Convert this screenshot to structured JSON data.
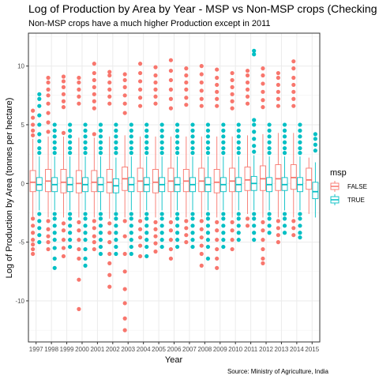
{
  "chart_data": {
    "type": "boxplot",
    "title": "Log of Production by Area by Year - MSP vs Non-MSP crops (Checking for o",
    "subtitle": "Non-MSP crops have a much higher Production except in 2011",
    "xlabel": "Year",
    "ylabel": "Log of Production by Area (tonnes per hectare)",
    "caption": "Source: Ministry of Agriculture, India",
    "ylim": [
      -13.5,
      12.8
    ],
    "yticks": [
      -10,
      -5,
      0,
      5,
      10
    ],
    "ytick_labels": [
      "-10",
      "-5",
      "0",
      "5",
      "10"
    ],
    "categories": [
      "1997",
      "1998",
      "1999",
      "2000",
      "2001",
      "2002",
      "2003",
      "2004",
      "2005",
      "2006",
      "2007",
      "2008",
      "2009",
      "2010",
      "2011",
      "2012",
      "2013",
      "2014",
      "2015"
    ],
    "legend": {
      "title": "msp",
      "position": "right",
      "entries": [
        {
          "label": "FALSE",
          "color": "#F8766D"
        },
        {
          "label": "TRUE",
          "color": "#00BFC4"
        }
      ]
    },
    "series": [
      {
        "name": "FALSE",
        "color": "#F8766D",
        "boxes": [
          {
            "year": "1997",
            "min": -2.8,
            "q1": -0.7,
            "median": 0.1,
            "q3": 1.1,
            "max": 3.8,
            "outliers": [
              4.1,
              4.5,
              5.0,
              5.6,
              6.2,
              -3.0,
              -3.6,
              -4.2,
              -4.8,
              -5.2,
              -5.6,
              -6.0
            ]
          },
          {
            "year": "1998",
            "min": -2.9,
            "q1": -0.7,
            "median": 0.2,
            "q3": 1.2,
            "max": 4.0,
            "outliers": [
              4.4,
              5.2,
              6.0,
              6.8,
              7.5,
              8.0,
              8.6,
              9.0,
              -3.2,
              -3.9,
              -4.5,
              -5.0,
              -5.6
            ]
          },
          {
            "year": "1999",
            "min": -2.9,
            "q1": -0.8,
            "median": 0.1,
            "q3": 1.2,
            "max": 4.0,
            "outliers": [
              4.3,
              6.5,
              7.0,
              7.6,
              8.2,
              8.7,
              9.1,
              -3.4,
              -4.0,
              -4.8,
              -5.5,
              -6.2
            ]
          },
          {
            "year": "2000",
            "min": -2.9,
            "q1": -0.8,
            "median": 0.0,
            "q3": 1.1,
            "max": 3.9,
            "outliers": [
              6.8,
              7.4,
              8.0,
              8.6,
              9.0,
              -3.3,
              -4.0,
              -4.8,
              -5.6,
              -6.4,
              -8.2,
              -10.7
            ]
          },
          {
            "year": "2001",
            "min": -2.9,
            "q1": -0.7,
            "median": 0.1,
            "q3": 1.1,
            "max": 3.9,
            "outliers": [
              4.2,
              6.4,
              7.0,
              7.6,
              8.2,
              8.8,
              9.4,
              10.2,
              -3.2,
              -3.8,
              -4.5,
              -5.0,
              -5.6
            ]
          },
          {
            "year": "2002",
            "min": -3.0,
            "q1": -0.8,
            "median": 0.1,
            "q3": 1.2,
            "max": 4.0,
            "outliers": [
              6.8,
              7.4,
              8.0,
              8.6,
              9.2,
              9.5,
              -3.4,
              -4.2,
              -5.0,
              -6.0,
              -6.8,
              -7.8,
              -8.8
            ]
          },
          {
            "year": "2003",
            "min": -2.9,
            "q1": -0.6,
            "median": 0.4,
            "q3": 1.4,
            "max": 4.1,
            "outliers": [
              6.0,
              6.8,
              7.5,
              8.2,
              8.8,
              9.3,
              -3.2,
              -4.5,
              -6.0,
              -7.5,
              -9.0,
              -10.2,
              -11.5,
              -12.5
            ]
          },
          {
            "year": "2004",
            "min": -2.9,
            "q1": -0.7,
            "median": 0.2,
            "q3": 1.3,
            "max": 4.0,
            "outliers": [
              6.6,
              7.3,
              8.0,
              8.7,
              9.4,
              10.2,
              -3.2,
              -3.9,
              -4.6,
              -5.3,
              -6.2
            ]
          },
          {
            "year": "2005",
            "min": -2.9,
            "q1": -0.8,
            "median": 0.1,
            "q3": 1.2,
            "max": 4.0,
            "outliers": [
              6.8,
              7.4,
              8.0,
              8.6,
              9.2,
              9.9,
              -3.3,
              -3.9,
              -4.5,
              -5.1,
              -5.8
            ]
          },
          {
            "year": "2006",
            "min": -2.9,
            "q1": -0.7,
            "median": 0.2,
            "q3": 1.3,
            "max": 4.0,
            "outliers": [
              6.4,
              7.2,
              8.0,
              8.8,
              9.6,
              10.5,
              -3.3,
              -4.0,
              -4.8,
              -5.6,
              -6.4
            ]
          },
          {
            "year": "2007",
            "min": -2.9,
            "q1": -0.7,
            "median": 0.2,
            "q3": 1.2,
            "max": 4.0,
            "outliers": [
              6.7,
              7.3,
              8.0,
              8.6,
              9.2,
              9.8,
              -3.2,
              -3.8,
              -4.4,
              -5.0
            ]
          },
          {
            "year": "2008",
            "min": -2.9,
            "q1": -0.7,
            "median": 0.2,
            "q3": 1.3,
            "max": 4.0,
            "outliers": [
              6.6,
              7.2,
              7.9,
              8.6,
              9.3,
              10.0,
              -3.2,
              -3.9,
              -4.6,
              -5.3,
              -6.0,
              -7.0
            ]
          },
          {
            "year": "2009",
            "min": -2.9,
            "q1": -0.8,
            "median": 0.1,
            "q3": 1.2,
            "max": 4.0,
            "outliers": [
              6.6,
              7.2,
              7.8,
              8.4,
              9.0,
              9.7,
              -3.3,
              -4.0,
              -4.8,
              -5.6,
              -6.4,
              -7.2
            ]
          },
          {
            "year": "2010",
            "min": -2.9,
            "q1": -0.7,
            "median": 0.2,
            "q3": 1.3,
            "max": 4.0,
            "outliers": [
              6.4,
              7.0,
              7.6,
              8.2,
              8.8,
              9.4,
              -3.3,
              -4.0,
              -4.8,
              -5.6
            ]
          },
          {
            "year": "2011",
            "min": -2.6,
            "q1": -0.6,
            "median": 0.3,
            "q3": 1.4,
            "max": 4.1,
            "outliers": [
              6.8,
              7.4,
              8.0,
              8.6,
              9.2,
              9.6,
              -3.0,
              -3.6
            ]
          },
          {
            "year": "2012",
            "min": -2.9,
            "q1": -0.6,
            "median": 0.4,
            "q3": 1.5,
            "max": 4.2,
            "outliers": [
              6.5,
              7.1,
              7.8,
              8.5,
              9.2,
              9.8,
              -3.3,
              -4.0,
              -4.8,
              -5.6,
              -6.4,
              -6.8
            ]
          },
          {
            "year": "2013",
            "min": -2.9,
            "q1": -0.6,
            "median": 0.4,
            "q3": 1.6,
            "max": 4.3,
            "outliers": [
              6.6,
              7.2,
              7.8,
              8.4,
              9.0,
              9.4,
              -3.2,
              -3.8,
              -4.4,
              -5.0
            ]
          },
          {
            "year": "2014",
            "min": -2.9,
            "q1": -0.5,
            "median": 0.5,
            "q3": 1.6,
            "max": 4.3,
            "outliers": [
              6.6,
              7.2,
              7.8,
              8.4,
              9.0,
              9.8,
              10.4,
              -3.2,
              -3.8,
              -4.4
            ]
          },
          {
            "year": "2015",
            "min": -2.6,
            "q1": -0.5,
            "median": 0.3,
            "q3": 1.3,
            "max": 2.2,
            "outliers": []
          }
        ]
      },
      {
        "name": "TRUE",
        "color": "#00BFC4",
        "boxes": [
          {
            "year": "1997",
            "min": -2.3,
            "q1": -0.6,
            "median": -0.1,
            "q3": 0.5,
            "max": 2.3,
            "outliers": [
              2.6,
              3.0,
              3.6,
              4.2,
              5.0,
              5.8,
              6.6,
              7.2,
              7.6,
              -2.6,
              -3.2,
              -3.8,
              -4.4,
              -5.0
            ]
          },
          {
            "year": "1998",
            "min": -2.3,
            "q1": -0.7,
            "median": -0.1,
            "q3": 0.5,
            "max": 2.3,
            "outliers": [
              2.6,
              3.0,
              3.5,
              4.0,
              4.5,
              5.0,
              -2.6,
              -3.0,
              -3.6,
              -4.2,
              -4.8,
              -5.5,
              -6.4,
              -7.2
            ]
          },
          {
            "year": "1999",
            "min": -2.3,
            "q1": -0.7,
            "median": -0.1,
            "q3": 0.5,
            "max": 2.3,
            "outliers": [
              2.6,
              3.0,
              3.5,
              4.0,
              4.5,
              5.0,
              -2.6,
              -3.0,
              -3.6,
              -4.2,
              -4.8,
              -5.4
            ]
          },
          {
            "year": "2000",
            "min": -2.3,
            "q1": -0.7,
            "median": -0.1,
            "q3": 0.5,
            "max": 2.3,
            "outliers": [
              2.6,
              3.0,
              3.5,
              4.0,
              4.5,
              5.0,
              -2.6,
              -3.0,
              -3.6,
              -4.2,
              -4.8,
              -5.6,
              -6.4,
              -7.0
            ]
          },
          {
            "year": "2001",
            "min": -2.3,
            "q1": -0.7,
            "median": -0.1,
            "q3": 0.5,
            "max": 2.3,
            "outliers": [
              2.6,
              3.0,
              3.5,
              4.0,
              4.5,
              5.0,
              -2.6,
              -3.0,
              -3.6,
              -4.2,
              -4.8,
              -5.4,
              -6.0
            ]
          },
          {
            "year": "2002",
            "min": -2.4,
            "q1": -0.8,
            "median": -0.2,
            "q3": 0.4,
            "max": 2.2,
            "outliers": [
              2.6,
              3.0,
              3.5,
              4.0,
              4.5,
              5.0,
              -2.6,
              -3.0,
              -3.6,
              -4.2,
              -4.8,
              -5.4,
              -6.0
            ]
          },
          {
            "year": "2003",
            "min": -2.3,
            "q1": -0.7,
            "median": -0.1,
            "q3": 0.5,
            "max": 2.3,
            "outliers": [
              2.6,
              3.0,
              3.5,
              4.0,
              4.5,
              5.0,
              -2.6,
              -3.0,
              -3.6,
              -4.2,
              -4.8,
              -5.4,
              -6.0
            ]
          },
          {
            "year": "2004",
            "min": -2.3,
            "q1": -0.7,
            "median": -0.1,
            "q3": 0.5,
            "max": 2.3,
            "outliers": [
              2.6,
              3.0,
              3.5,
              4.0,
              4.5,
              5.0,
              -2.6,
              -3.0,
              -3.6,
              -4.2,
              -4.8,
              -5.4,
              -6.2
            ]
          },
          {
            "year": "2005",
            "min": -2.3,
            "q1": -0.7,
            "median": -0.1,
            "q3": 0.5,
            "max": 2.3,
            "outliers": [
              2.6,
              3.0,
              3.5,
              4.0,
              4.5,
              5.0,
              -2.6,
              -3.0,
              -3.6,
              -4.2,
              -4.8,
              -5.4
            ]
          },
          {
            "year": "2006",
            "min": -2.3,
            "q1": -0.7,
            "median": -0.1,
            "q3": 0.5,
            "max": 2.3,
            "outliers": [
              2.6,
              3.0,
              3.5,
              4.0,
              4.5,
              5.0,
              -2.6,
              -3.0,
              -3.6,
              -4.2,
              -4.8,
              -5.4
            ]
          },
          {
            "year": "2007",
            "min": -2.3,
            "q1": -0.7,
            "median": -0.1,
            "q3": 0.5,
            "max": 2.3,
            "outliers": [
              2.6,
              3.0,
              3.5,
              4.0,
              4.5,
              5.0,
              -2.6,
              -3.0,
              -3.6,
              -4.2,
              -4.8,
              -5.4
            ]
          },
          {
            "year": "2008",
            "min": -2.3,
            "q1": -0.7,
            "median": -0.1,
            "q3": 0.5,
            "max": 2.3,
            "outliers": [
              2.6,
              3.0,
              3.5,
              4.0,
              4.5,
              5.0,
              -2.6,
              -3.0,
              -3.6,
              -4.2,
              -4.8,
              -5.4,
              -6.4
            ]
          },
          {
            "year": "2009",
            "min": -2.3,
            "q1": -0.7,
            "median": -0.1,
            "q3": 0.5,
            "max": 2.3,
            "outliers": [
              2.6,
              3.0,
              3.5,
              4.0,
              4.5,
              5.0,
              -2.6,
              -3.0,
              -3.6,
              -4.2,
              -4.8,
              -5.4
            ]
          },
          {
            "year": "2010",
            "min": -2.3,
            "q1": -0.7,
            "median": -0.1,
            "q3": 0.5,
            "max": 2.3,
            "outliers": [
              2.6,
              3.0,
              3.5,
              4.0,
              4.5,
              5.0,
              -2.6,
              -3.0,
              -3.6,
              -4.2,
              -4.8
            ]
          },
          {
            "year": "2011",
            "min": -2.3,
            "q1": -0.6,
            "median": 0.0,
            "q3": 0.6,
            "max": 2.4,
            "outliers": [
              2.7,
              3.2,
              3.8,
              4.4,
              5.0,
              5.4,
              11.0,
              11.3,
              -2.6,
              -3.0,
              -3.6,
              -4.2,
              -4.8
            ]
          },
          {
            "year": "2012",
            "min": -2.3,
            "q1": -0.7,
            "median": -0.1,
            "q3": 0.5,
            "max": 2.3,
            "outliers": [
              2.6,
              3.0,
              3.5,
              4.0,
              4.5,
              5.0,
              -2.6,
              -3.0,
              -3.6,
              -4.2
            ]
          },
          {
            "year": "2013",
            "min": -2.3,
            "q1": -0.6,
            "median": -0.1,
            "q3": 0.5,
            "max": 2.3,
            "outliers": [
              2.6,
              3.0,
              3.5,
              4.0,
              4.5,
              5.0,
              -2.6,
              -3.0,
              -3.6,
              -4.2
            ]
          },
          {
            "year": "2014",
            "min": -2.3,
            "q1": -0.7,
            "median": -0.1,
            "q3": 0.5,
            "max": 2.3,
            "outliers": [
              2.6,
              3.0,
              3.5,
              4.0,
              4.5,
              5.0,
              -2.6,
              -3.0,
              -3.6,
              -4.2,
              -4.6
            ]
          },
          {
            "year": "2015",
            "min": -2.9,
            "q1": -1.3,
            "median": -0.7,
            "q3": 0.1,
            "max": 1.8,
            "outliers": [
              2.8,
              3.3,
              3.8,
              4.2
            ]
          }
        ]
      }
    ]
  }
}
